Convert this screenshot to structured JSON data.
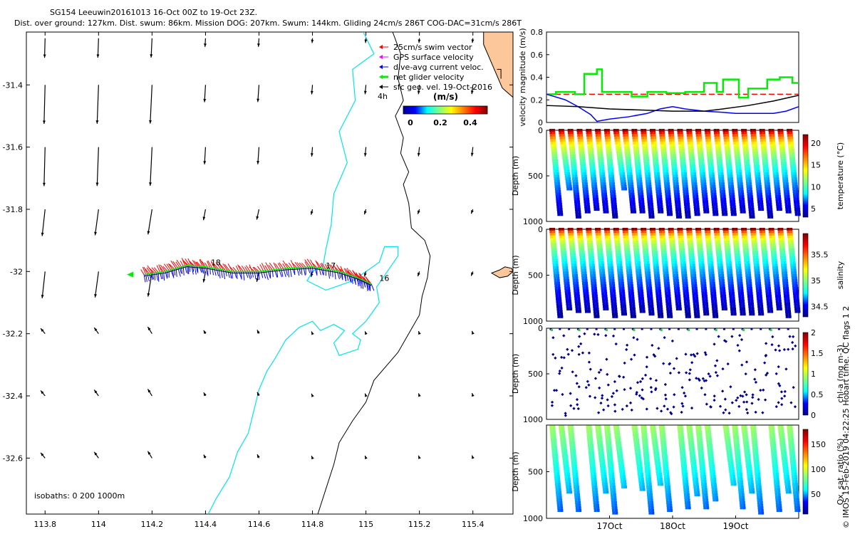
{
  "header": {
    "line1": "SG154 Leeuwin20161013 16-Oct 00Z to 19-Oct 23Z.",
    "line2": "Dist. over ground: 127km. Dist. swum: 86km. Mission DOG: 207km. Swum: 144km. Gliding 24cm/s 286T COG-DAC=31cm/s 286T"
  },
  "credit": "© IMOS 15-Feb-2019 04:22:25 Hobart time. QC flags 1  2",
  "colors": {
    "coast": "#000000",
    "isobath200": "#00e5ee",
    "swim": "#ff0000",
    "gps": "#ff00ff",
    "dac": "#0000ff",
    "net": "#00ee00",
    "land": "#fcc89b",
    "sfc": "#000000"
  },
  "map": {
    "lon_range": [
      113.73,
      115.55
    ],
    "lat_range": [
      -32.78,
      -31.23
    ],
    "lon_ticks": [
      "113.8",
      "114",
      "114.2",
      "114.4",
      "114.6",
      "114.8",
      "115",
      "115.2",
      "115.4"
    ],
    "lat_ticks": [
      "-31.4",
      "-31.6",
      "-31.8",
      "-32",
      "-32.2",
      "-32.4",
      "-32.6"
    ],
    "isobaths_label": "isobaths: 0   200  1000m",
    "day_labels": [
      {
        "text": "18",
        "lon": 114.42,
        "lat": -31.98
      },
      {
        "text": "17",
        "lon": 114.85,
        "lat": -31.99
      },
      {
        "text": "16",
        "lon": 115.05,
        "lat": -32.03
      }
    ],
    "legend": {
      "items": [
        {
          "label": "25cm/s swim vector",
          "color": "swim"
        },
        {
          "label": "GPS surface velocity",
          "color": "gps"
        },
        {
          "label": "dive-avg current veloc.",
          "color": "dac"
        },
        {
          "label": "net glider velocity",
          "color": "net"
        },
        {
          "label": "sfc geo. vel. 19-Oct-2016",
          "color": "sfc"
        }
      ],
      "time_note": "4h",
      "colorbar_title": "(m/s)",
      "colorbar_ticks": [
        "0",
        "0.2",
        "0.4"
      ]
    }
  },
  "chart_data": [
    {
      "type": "line",
      "title": "",
      "ylabel": "velocity magnitude (m/s)",
      "ylim": [
        0,
        0.8
      ],
      "yticks": [
        "0",
        "0.2",
        "0.4",
        "0.6",
        "0.8"
      ],
      "x_unit": "days since 16-Oct 00Z",
      "xlim": [
        0,
        4
      ],
      "series": [
        {
          "name": "swim speed",
          "color": "swim",
          "style": "dashed",
          "x": [
            0,
            4
          ],
          "y": [
            0.25,
            0.25
          ]
        },
        {
          "name": "net glider velocity",
          "color": "net",
          "x": [
            0,
            0.15,
            0.15,
            0.45,
            0.45,
            0.6,
            0.6,
            0.8,
            0.8,
            0.88,
            0.88,
            1.35,
            1.35,
            1.6,
            1.6,
            1.9,
            1.9,
            2.2,
            2.2,
            2.5,
            2.5,
            2.7,
            2.7,
            2.8,
            2.8,
            3.05,
            3.05,
            3.2,
            3.2,
            3.5,
            3.5,
            3.7,
            3.7,
            3.9,
            3.9,
            4
          ],
          "y": [
            0.25,
            0.25,
            0.27,
            0.27,
            0.25,
            0.25,
            0.43,
            0.43,
            0.47,
            0.47,
            0.27,
            0.27,
            0.23,
            0.23,
            0.27,
            0.27,
            0.26,
            0.26,
            0.27,
            0.27,
            0.35,
            0.35,
            0.27,
            0.27,
            0.38,
            0.38,
            0.22,
            0.22,
            0.3,
            0.3,
            0.38,
            0.38,
            0.4,
            0.4,
            0.35,
            0.35
          ]
        },
        {
          "name": "dive-avg current",
          "color": "dac",
          "x": [
            0,
            0.3,
            0.5,
            0.7,
            0.8,
            1.0,
            1.3,
            1.6,
            1.8,
            2.0,
            2.2,
            2.5,
            2.8,
            3.0,
            3.3,
            3.6,
            3.8,
            4.0
          ],
          "y": [
            0.25,
            0.2,
            0.14,
            0.07,
            0.01,
            0.03,
            0.05,
            0.08,
            0.12,
            0.14,
            0.12,
            0.1,
            0.09,
            0.08,
            0.08,
            0.08,
            0.1,
            0.14
          ]
        },
        {
          "name": "sfc geo. vel.",
          "color": "sfc",
          "x": [
            0,
            0.5,
            1.0,
            1.5,
            2.0,
            2.5,
            2.8,
            3.2,
            3.6,
            4.0
          ],
          "y": [
            0.15,
            0.14,
            0.12,
            0.11,
            0.1,
            0.1,
            0.12,
            0.15,
            0.19,
            0.24
          ]
        }
      ]
    },
    {
      "type": "scatter",
      "ylabel": "Depth (m)",
      "colorbar_label": "temperature (°C)",
      "ylim": [
        1000,
        0
      ],
      "yticks": [
        "0",
        "500",
        "1000"
      ],
      "colorbar_range": [
        3,
        22
      ],
      "colorbar_ticks": [
        "5",
        "10",
        "15",
        "20"
      ],
      "dive_count": 27,
      "deep_dives": [
        1,
        0,
        1,
        1,
        1,
        1,
        1,
        0,
        1,
        1,
        1,
        1,
        1,
        1,
        1,
        1,
        1,
        1,
        1,
        1,
        1,
        1,
        1,
        1,
        1,
        1,
        1
      ],
      "profile": "temperature"
    },
    {
      "type": "scatter",
      "ylabel": "Depth (m)",
      "colorbar_label": "salinity",
      "ylim": [
        1000,
        0
      ],
      "yticks": [
        "0",
        "500",
        "1000"
      ],
      "colorbar_range": [
        34.3,
        35.9
      ],
      "colorbar_ticks": [
        "34.5",
        "35",
        "35.5"
      ],
      "dive_count": 27,
      "deep_dives": [
        1,
        1,
        1,
        1,
        1,
        1,
        1,
        1,
        1,
        1,
        1,
        1,
        1,
        1,
        1,
        1,
        1,
        1,
        1,
        1,
        1,
        1,
        1,
        1,
        1,
        1,
        1
      ],
      "profile": "salinity"
    },
    {
      "type": "scatter",
      "ylabel": "Depth (m)",
      "colorbar_label": "chl-a (mg m-3)",
      "ylim": [
        1000,
        0
      ],
      "yticks": [
        "0",
        "500",
        "1000"
      ],
      "colorbar_range": [
        0,
        2
      ],
      "colorbar_ticks": [
        "0",
        "0.5",
        "1",
        "1.5",
        "2"
      ],
      "dive_count": 27,
      "profile": "chl"
    },
    {
      "type": "scatter",
      "ylabel": "Depth (m)",
      "colorbar_label": "Ox. sat. ratio (%)",
      "ylim": [
        1000,
        0
      ],
      "yticks": [
        "500",
        "1000"
      ],
      "colorbar_range": [
        10,
        180
      ],
      "colorbar_ticks": [
        "50",
        "100",
        "150"
      ],
      "x_ticks": [
        "17Oct",
        "18Oct",
        "19Oct"
      ],
      "x_tick_days": [
        1,
        2,
        3
      ],
      "profile": "oxygen"
    }
  ]
}
